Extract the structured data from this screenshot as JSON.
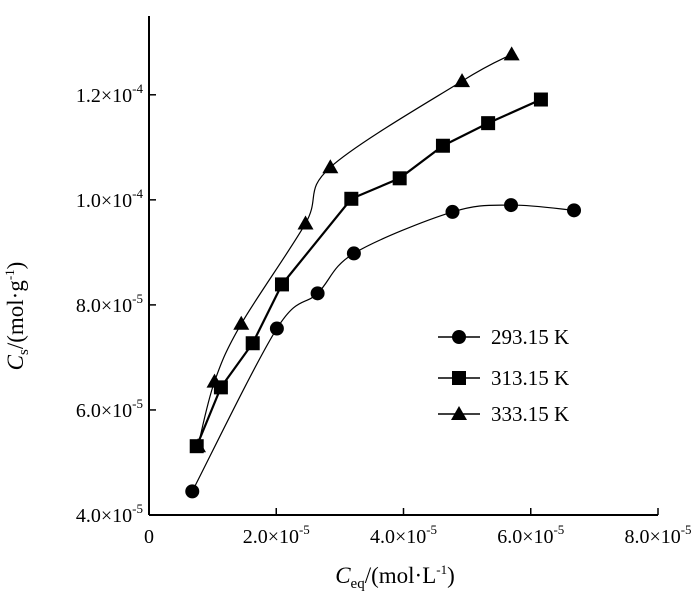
{
  "chart_data": {
    "type": "line",
    "xlabel": {
      "main": "C",
      "sub": "eq",
      "unit": "/(mol·L",
      "exp": "-1",
      "close": ")"
    },
    "ylabel": {
      "main": "C",
      "sub": "s",
      "unit": "/(mol·g",
      "exp": "-1",
      "close": ")"
    },
    "xlim": [
      0,
      8e-05
    ],
    "ylim": [
      4e-05,
      0.000135
    ],
    "x_ticks": [
      {
        "value": 0,
        "text": "0",
        "exp": ""
      },
      {
        "value": 2e-05,
        "text": "2.0×10",
        "exp": "-5"
      },
      {
        "value": 4e-05,
        "text": "4.0×10",
        "exp": "-5"
      },
      {
        "value": 6e-05,
        "text": "6.0×10",
        "exp": "-5"
      },
      {
        "value": 8e-05,
        "text": "8.0×10",
        "exp": "-5"
      }
    ],
    "y_ticks": [
      {
        "value": 4e-05,
        "text": "4.0×10",
        "exp": "-5"
      },
      {
        "value": 6e-05,
        "text": "6.0×10",
        "exp": "-5"
      },
      {
        "value": 8e-05,
        "text": "8.0×10",
        "exp": "-5"
      },
      {
        "value": 0.0001,
        "text": "1.0×10",
        "exp": "-4"
      },
      {
        "value": 0.00012,
        "text": "1.2×10",
        "exp": "-4"
      }
    ],
    "grid": false,
    "legend_position": "center-right",
    "series": [
      {
        "name": "293.15 K",
        "marker": "circle",
        "line": "thin",
        "x": [
          6.8e-06,
          2.01e-05,
          2.65e-05,
          3.22e-05,
          4.77e-05,
          5.69e-05,
          6.68e-05
        ],
        "y": [
          4.45e-05,
          7.55e-05,
          8.22e-05,
          8.98e-05,
          9.77e-05,
          9.9e-05,
          9.8e-05
        ]
      },
      {
        "name": "313.15 K",
        "marker": "square",
        "line": "thick",
        "x": [
          7.5e-06,
          1.13e-05,
          1.63e-05,
          2.09e-05,
          3.18e-05,
          3.94e-05,
          4.62e-05,
          5.33e-05,
          6.16e-05
        ],
        "y": [
          5.31e-05,
          6.43e-05,
          7.27e-05,
          8.39e-05,
          0.0001002,
          0.0001041,
          0.0001103,
          0.0001146,
          0.0001191
        ]
      },
      {
        "name": "333.15 K",
        "marker": "triangle",
        "line": "thin",
        "x": [
          7.7e-06,
          1.03e-05,
          1.45e-05,
          2.46e-05,
          2.85e-05,
          4.92e-05,
          5.7e-05
        ],
        "y": [
          5.31e-05,
          6.54e-05,
          7.64e-05,
          9.55e-05,
          0.0001062,
          0.0001226,
          0.0001277
        ]
      }
    ]
  },
  "colors": {
    "ink": "#000000",
    "background": "#ffffff"
  }
}
